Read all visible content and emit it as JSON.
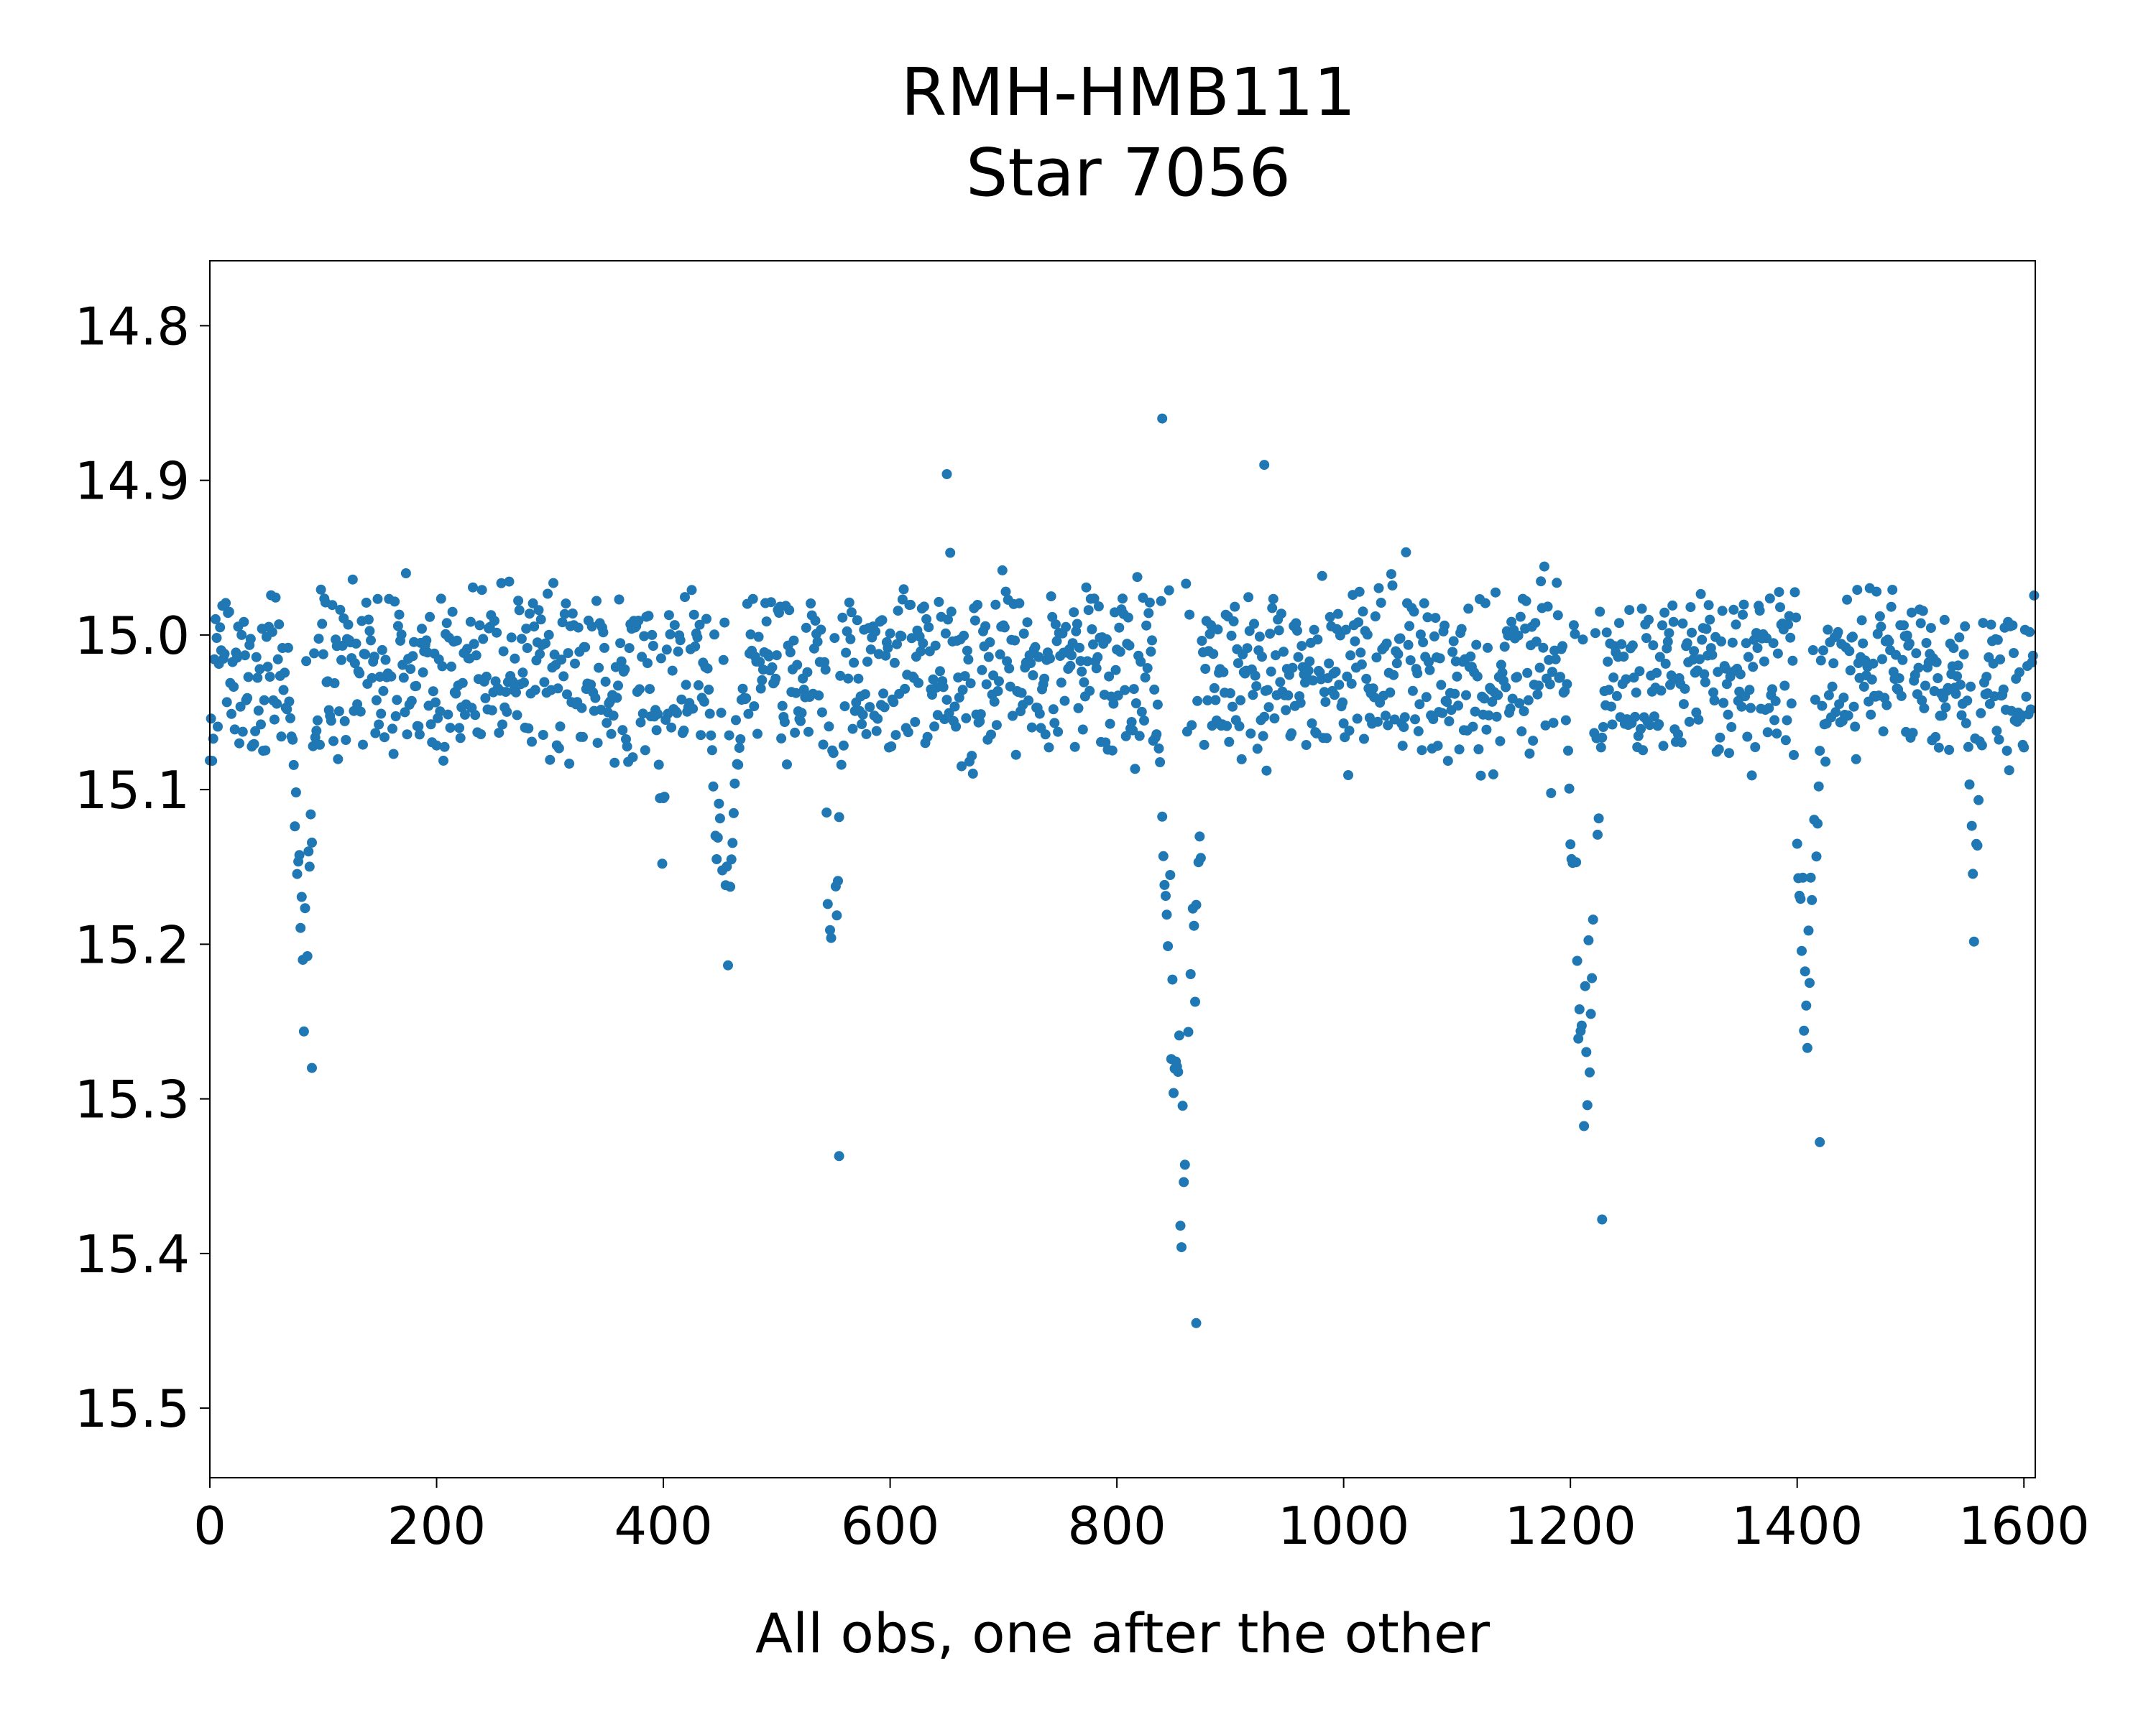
{
  "chart_data": {
    "type": "scatter",
    "title_line1": "RMH-HMB111",
    "title_line2": "Star 7056",
    "xlabel": "All obs, one after the other",
    "ylabel": "",
    "xlim": [
      0,
      1610
    ],
    "ylim": [
      15.545,
      14.758
    ],
    "y_inverted": true,
    "grid": false,
    "x_ticks": [
      0,
      200,
      400,
      600,
      800,
      1000,
      1200,
      1400,
      1600
    ],
    "y_ticks": [
      14.8,
      14.9,
      15.0,
      15.1,
      15.2,
      15.3,
      15.4,
      15.5
    ],
    "y_tick_labels": [
      "14.8",
      "14.9",
      "15.0",
      "15.1",
      "15.2",
      "15.3",
      "15.4",
      "15.5"
    ],
    "marker_color": "#1f77b4",
    "n_points": 1610,
    "baseline_mag": 15.025,
    "scatter_amplitude": 0.09,
    "dips": [
      {
        "start": 70,
        "end": 95,
        "min_mag": 15.28
      },
      {
        "start": 395,
        "end": 402,
        "min_mag": 15.215
      },
      {
        "start": 440,
        "end": 470,
        "min_mag": 15.265
      },
      {
        "start": 540,
        "end": 558,
        "min_mag": 15.34
      },
      {
        "start": 835,
        "end": 880,
        "min_mag": 15.445
      },
      {
        "start": 1195,
        "end": 1230,
        "min_mag": 15.38
      },
      {
        "start": 1395,
        "end": 1422,
        "min_mag": 15.33
      },
      {
        "start": 1550,
        "end": 1562,
        "min_mag": 15.235
      }
    ],
    "notable_points": [
      {
        "x": 840,
        "y": 14.86
      },
      {
        "x": 930,
        "y": 14.89
      },
      {
        "x": 650,
        "y": 14.896
      },
      {
        "x": 870,
        "y": 15.445
      },
      {
        "x": 1228,
        "y": 15.378
      },
      {
        "x": 555,
        "y": 15.337
      },
      {
        "x": 1420,
        "y": 15.328
      },
      {
        "x": 90,
        "y": 15.28
      }
    ]
  }
}
